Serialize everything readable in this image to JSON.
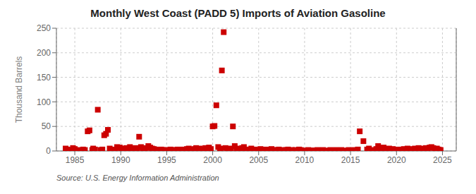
{
  "chart_data": {
    "type": "scatter",
    "title": "Monthly West Coast (PADD 5) Imports of Aviation Gasoline",
    "ylabel": "Thousand Barrels",
    "source": "Source: U.S. Energy Information Administration",
    "color": "#cc0000",
    "marker": "square",
    "grid": true,
    "xlim": [
      1983.0,
      2026.5
    ],
    "xticks": [
      1985,
      1990,
      1995,
      2000,
      2005,
      2010,
      2015,
      2020,
      2025
    ],
    "ylim": [
      0,
      250
    ],
    "yticks": [
      0,
      50,
      100,
      150,
      200,
      250
    ],
    "x": [
      1984.0,
      1984.2,
      1984.5,
      1984.8,
      1985.0,
      1985.3,
      1985.6,
      1985.9,
      1986.1,
      1986.4,
      1986.6,
      1986.9,
      1987.0,
      1987.2,
      1987.5,
      1987.8,
      1988.0,
      1988.2,
      1988.4,
      1988.6,
      1988.8,
      1989.0,
      1989.2,
      1989.4,
      1989.6,
      1989.9,
      1990.0,
      1990.3,
      1990.6,
      1990.9,
      1991.0,
      1991.2,
      1991.4,
      1991.6,
      1991.8,
      1992.0,
      1992.2,
      1992.4,
      1992.6,
      1992.8,
      1993.0,
      1993.2,
      1993.4,
      1993.6,
      1993.8,
      1994.0,
      1994.2,
      1994.4,
      1994.6,
      1994.8,
      1995.0,
      1995.2,
      1995.4,
      1995.6,
      1995.8,
      1996.0,
      1996.2,
      1996.4,
      1996.6,
      1996.8,
      1997.0,
      1997.2,
      1997.4,
      1997.6,
      1997.8,
      1998.0,
      1998.2,
      1998.4,
      1998.6,
      1998.8,
      1999.0,
      1999.2,
      1999.4,
      1999.6,
      1999.8,
      2000.0,
      2000.2,
      2000.4,
      2000.6,
      2000.8,
      2001.0,
      2001.2,
      2001.4,
      2001.6,
      2001.8,
      2002.0,
      2002.2,
      2002.4,
      2002.6,
      2002.8,
      2003.0,
      2003.2,
      2003.4,
      2003.6,
      2003.8,
      2004.0,
      2004.2,
      2004.4,
      2004.6,
      2004.8,
      2005.0,
      2005.2,
      2005.4,
      2005.6,
      2005.8,
      2006.0,
      2006.2,
      2006.4,
      2006.6,
      2006.8,
      2007.0,
      2007.2,
      2007.4,
      2007.6,
      2007.8,
      2008.0,
      2008.2,
      2008.4,
      2008.6,
      2008.8,
      2009.0,
      2009.2,
      2009.4,
      2009.6,
      2010.0,
      2010.4,
      2010.8,
      2011.0,
      2011.4,
      2011.8,
      2012.0,
      2012.4,
      2012.8,
      2013.0,
      2013.4,
      2013.8,
      2014.0,
      2014.4,
      2014.8,
      2015.0,
      2015.4,
      2015.8,
      2016.0,
      2016.4,
      2016.8,
      2017.0,
      2017.4,
      2017.8,
      2018.0,
      2018.2,
      2018.4,
      2018.6,
      2018.8,
      2019.0,
      2019.2,
      2019.4,
      2019.6,
      2019.8,
      2020.0,
      2020.2,
      2020.4,
      2020.6,
      2020.8,
      2021.0,
      2021.2,
      2021.4,
      2021.6,
      2021.8,
      2022.0,
      2022.2,
      2022.4,
      2022.6,
      2022.8,
      2023.0,
      2023.2,
      2023.4,
      2023.6,
      2023.8,
      2024.0,
      2024.2,
      2024.4,
      2024.6,
      2024.8
    ],
    "values": [
      5,
      3,
      2,
      6,
      4,
      2,
      1,
      3,
      2,
      40,
      42,
      2,
      5,
      3,
      84,
      2,
      3,
      32,
      35,
      43,
      5,
      3,
      2,
      1,
      8,
      7,
      5,
      4,
      6,
      3,
      8,
      5,
      3,
      6,
      4,
      29,
      8,
      5,
      3,
      6,
      10,
      7,
      5,
      4,
      3,
      2,
      1,
      3,
      2,
      1,
      2,
      1,
      3,
      2,
      1,
      2,
      3,
      1,
      2,
      3,
      2,
      4,
      5,
      3,
      2,
      4,
      6,
      3,
      5,
      2,
      3,
      6,
      5,
      7,
      4,
      50,
      51,
      93,
      8,
      5,
      164,
      242,
      6,
      4,
      3,
      5,
      50,
      10,
      5,
      3,
      4,
      6,
      8,
      3,
      2,
      3,
      5,
      2,
      3,
      1,
      2,
      4,
      1,
      2,
      3,
      2,
      1,
      4,
      2,
      1,
      2,
      3,
      1,
      2,
      1,
      2,
      3,
      1,
      2,
      1,
      2,
      1,
      3,
      2,
      1,
      2,
      1,
      1,
      2,
      1,
      2,
      1,
      2,
      1,
      2,
      1,
      2,
      1,
      2,
      1,
      2,
      3,
      40,
      20,
      3,
      5,
      2,
      4,
      10,
      5,
      3,
      7,
      4,
      3,
      5,
      2,
      4,
      3,
      2,
      1,
      3,
      2,
      4,
      3,
      5,
      2,
      4,
      3,
      5,
      4,
      6,
      3,
      5,
      4,
      6,
      5,
      7,
      8,
      6,
      4,
      5,
      3,
      2
    ]
  }
}
